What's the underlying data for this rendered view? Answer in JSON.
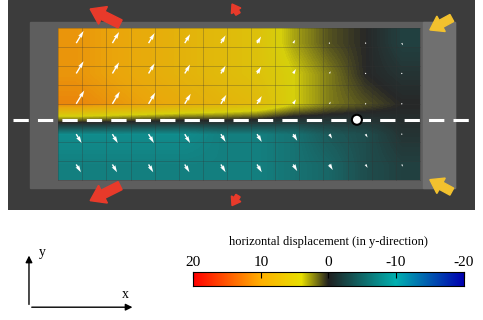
{
  "chart_data": {
    "type": "heatmap",
    "cells": [
      [
        -7,
        -7,
        -7,
        -7,
        -7,
        -7,
        -6,
        -5,
        -3,
        -2
      ],
      [
        -8,
        -8,
        -8,
        -8,
        -7,
        -7,
        -6,
        -4,
        -3,
        -1
      ],
      [
        12,
        11,
        10,
        9,
        8,
        7,
        4,
        2,
        1,
        0
      ],
      [
        11,
        10,
        9,
        8,
        7,
        6,
        4,
        2,
        0,
        -1
      ],
      [
        11,
        10,
        9,
        8,
        7,
        6,
        3,
        1,
        0,
        -2
      ]
    ],
    "colorbar_label": "horizontal displacement (in y-direction)",
    "colorbar_range": [
      20,
      -20
    ],
    "colorbar_ticks": [
      20,
      10,
      0,
      -10,
      -20
    ],
    "tick_labels": false,
    "xlabel": "x",
    "ylabel": "y"
  }
}
